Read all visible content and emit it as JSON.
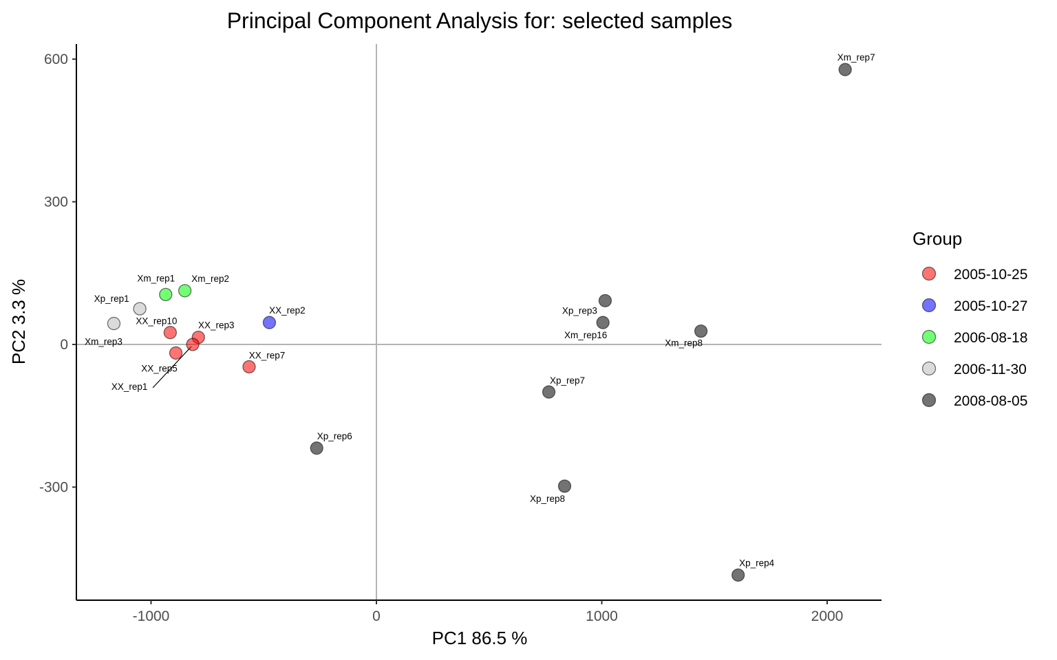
{
  "chart_data": {
    "type": "scatter",
    "title": "Principal Component Analysis for:  selected samples",
    "xlabel": "PC1 86.5 %",
    "ylabel": "PC2 3.3 %",
    "xlim": [
      -1330,
      2230
    ],
    "ylim": [
      -535,
      630
    ],
    "xticks": [
      -1000,
      0,
      1000,
      2000
    ],
    "xtick_labels": [
      "-1000",
      "0",
      "1000",
      "2000"
    ],
    "yticks": [
      -300,
      0,
      300,
      600
    ],
    "ytick_labels": [
      "-300",
      "0",
      "300",
      "600"
    ],
    "reference_lines": {
      "x": 0,
      "y": 0,
      "color": "#b3b3b3"
    },
    "grid": false,
    "legend": {
      "title": "Group",
      "position": "right",
      "entries": [
        {
          "label": "2005-10-25",
          "color": "#ff0000"
        },
        {
          "label": "2005-10-27",
          "color": "#0000ff"
        },
        {
          "label": "2006-08-18",
          "color": "#00ff00"
        },
        {
          "label": "2006-11-30",
          "color": "#bebebe"
        },
        {
          "label": "2008-08-05",
          "color": "#000000"
        }
      ]
    },
    "series": [
      {
        "name": "2005-10-25",
        "color": "#ff0000",
        "points": [
          {
            "label": "XX_rep10",
            "x": -915,
            "y": 25
          },
          {
            "label": "XX_rep3",
            "x": -790,
            "y": 15
          },
          {
            "label": "XX_rep5",
            "x": -890,
            "y": -18
          },
          {
            "label": "XX_rep1",
            "x": -815,
            "y": 0
          },
          {
            "label": "XX_rep7",
            "x": -565,
            "y": -47
          }
        ]
      },
      {
        "name": "2005-10-27",
        "color": "#0000ff",
        "points": [
          {
            "label": "XX_rep2",
            "x": -475,
            "y": 46
          }
        ]
      },
      {
        "name": "2006-08-18",
        "color": "#00ff00",
        "points": [
          {
            "label": "Xm_rep1",
            "x": -935,
            "y": 105
          },
          {
            "label": "Xm_rep2",
            "x": -850,
            "y": 113
          }
        ]
      },
      {
        "name": "2006-11-30",
        "color": "#bebebe",
        "points": [
          {
            "label": "Xp_rep1",
            "x": -1050,
            "y": 75
          },
          {
            "label": "Xm_rep3",
            "x": -1165,
            "y": 44
          }
        ]
      },
      {
        "name": "2008-08-05",
        "color": "#000000",
        "points": [
          {
            "label": "Xm_rep7",
            "x": 2080,
            "y": 578
          },
          {
            "label": "Xp_rep3",
            "x": 1015,
            "y": 92
          },
          {
            "label": "Xm_rep16",
            "x": 1005,
            "y": 46
          },
          {
            "label": "Xm_rep8",
            "x": 1440,
            "y": 28
          },
          {
            "label": "Xp_rep7",
            "x": 765,
            "y": -100
          },
          {
            "label": "Xp_rep6",
            "x": -265,
            "y": -218
          },
          {
            "label": "Xp_rep8",
            "x": 835,
            "y": -298
          },
          {
            "label": "Xp_rep4",
            "x": 1605,
            "y": -485
          }
        ]
      }
    ]
  }
}
